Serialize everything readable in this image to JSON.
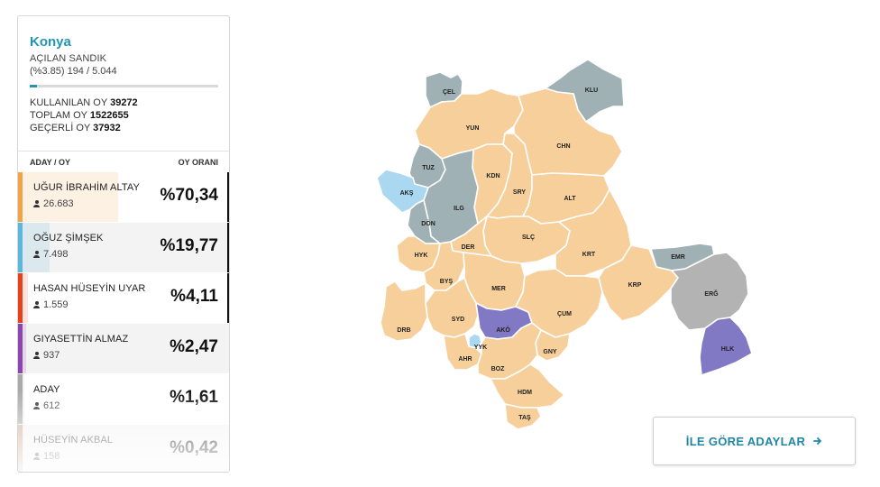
{
  "province": "Konya",
  "ballot": {
    "opened_label": "AÇILAN SANDIK",
    "opened_count": "(%3.85) 194 / 5.044",
    "progress_percent": 3.85
  },
  "stats": {
    "used_label": "KULLANILAN OY",
    "used_value": "39272",
    "total_label": "TOPLAM OY",
    "total_value": "1522655",
    "valid_label": "GEÇERLİ OY",
    "valid_value": "37932"
  },
  "table_header": {
    "left": "ADAY / OY",
    "right": "OY ORANI"
  },
  "candidates": [
    {
      "name": "UĞUR İBRAHİM ALTAY",
      "votes": "26.683",
      "percent": "%70,34",
      "share": 70.34,
      "color": "#f2a444"
    },
    {
      "name": "OĞUZ ŞİMŞEK",
      "votes": "7.498",
      "percent": "%19,77",
      "share": 19.77,
      "color": "#5ab8de"
    },
    {
      "name": "HASAN HÜSEYİN UYAR",
      "votes": "1.559",
      "percent": "%4,11",
      "share": 4.11,
      "color": "#e8401c"
    },
    {
      "name": "GIYASETTİN ALMAZ",
      "votes": "937",
      "percent": "%2,47",
      "share": 2.47,
      "color": "#8e44ad"
    },
    {
      "name": "ADAY",
      "votes": "612",
      "percent": "%1,61",
      "share": 1.61,
      "color": "#aaaaaa"
    },
    {
      "name": "HÜSEYİN AKBAL",
      "votes": "158",
      "percent": "%0,42",
      "share": 0.42,
      "color": "#c8a58a"
    }
  ],
  "map": {
    "colors": {
      "orange": "#f7cf9b",
      "slate": "#9fb1b4",
      "lightblue": "#a9d8f0",
      "purple": "#8279c4",
      "gray": "#b3b3b3"
    },
    "districts": [
      "ÇEL",
      "KLU",
      "YUN",
      "CHN",
      "TUZ",
      "AKŞ",
      "KDN",
      "SRY",
      "ILG",
      "ALT",
      "DÖN",
      "SLÇ",
      "DER",
      "HYK",
      "KRT",
      "EMR",
      "BYŞ",
      "MER",
      "KRP",
      "ERĞ",
      "SYD",
      "DRB",
      "AKÖ",
      "ÇUM",
      "YYK",
      "AHR",
      "GNY",
      "HLK",
      "BOZ",
      "HDM",
      "TAŞ"
    ]
  },
  "button": {
    "label": "İLE GÖRE ADAYLAR",
    "icon": "arrow-right-icon"
  }
}
